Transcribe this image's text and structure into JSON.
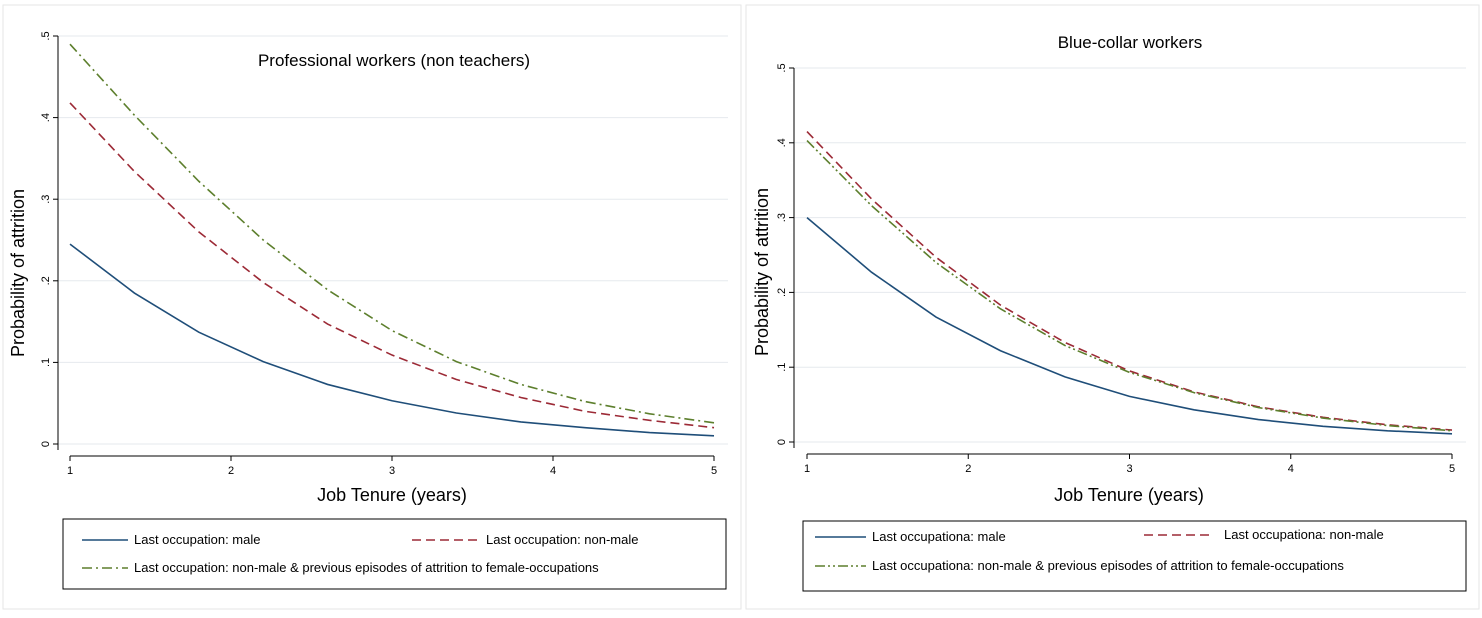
{
  "chart_data": [
    {
      "type": "line",
      "title": "Professional workers (non teachers)",
      "xlabel": "Job Tenure (years)",
      "ylabel": "Probability of attrition",
      "xlim": [
        1,
        5
      ],
      "ylim": [
        0,
        0.5
      ],
      "xticks": [
        1,
        2,
        3,
        4,
        5
      ],
      "xtick_labels": [
        "1",
        "2",
        "3",
        "4",
        "5"
      ],
      "yticks": [
        0,
        0.1,
        0.2,
        0.3,
        0.4,
        0.5
      ],
      "ytick_labels": [
        "0",
        ".1",
        ".2",
        ".3",
        ".4",
        ".5"
      ],
      "grid": true,
      "legend_position": "bottom",
      "x": [
        1,
        1.4,
        1.8,
        2.2,
        2.6,
        3,
        3.4,
        3.8,
        4.2,
        4.6,
        5
      ],
      "series": [
        {
          "name": "Last occupation: male",
          "color": "#1f4e79",
          "dash": "solid",
          "values": [
            0.245,
            0.185,
            0.137,
            0.101,
            0.073,
            0.053,
            0.038,
            0.027,
            0.02,
            0.014,
            0.01
          ]
        },
        {
          "name": "Last occupation: non-male",
          "color": "#9c2a36",
          "dash": "dashed",
          "values": [
            0.418,
            0.334,
            0.26,
            0.198,
            0.147,
            0.109,
            0.079,
            0.057,
            0.04,
            0.029,
            0.02
          ]
        },
        {
          "name": "Last occupation: non-male & previous episodes of attrition to female-occupations",
          "color": "#5d7f2d",
          "dash": "dashdot",
          "values": [
            0.49,
            0.403,
            0.322,
            0.25,
            0.189,
            0.139,
            0.101,
            0.073,
            0.052,
            0.037,
            0.026
          ]
        }
      ]
    },
    {
      "type": "line",
      "title": "Blue-collar workers",
      "xlabel": "Job Tenure (years)",
      "ylabel": "Probability of attrition",
      "xlim": [
        1,
        5
      ],
      "ylim": [
        0,
        0.5
      ],
      "xticks": [
        1,
        2,
        3,
        4,
        5
      ],
      "xtick_labels": [
        "1",
        "2",
        "3",
        "4",
        "5"
      ],
      "yticks": [
        0,
        0.1,
        0.2,
        0.3,
        0.4,
        0.5
      ],
      "ytick_labels": [
        "0",
        ".1",
        ".2",
        ".3",
        ".4",
        ".5"
      ],
      "grid": true,
      "legend_position": "bottom",
      "x": [
        1,
        1.4,
        1.8,
        2.2,
        2.6,
        3,
        3.4,
        3.8,
        4.2,
        4.6,
        5
      ],
      "series": [
        {
          "name": "Last occupationa: male",
          "color": "#1f4e79",
          "dash": "solid",
          "values": [
            0.3,
            0.227,
            0.167,
            0.122,
            0.087,
            0.061,
            0.043,
            0.03,
            0.021,
            0.015,
            0.011
          ]
        },
        {
          "name": "Last occupationa: non-male",
          "color": "#9c2a36",
          "dash": "dashed",
          "values": [
            0.415,
            0.325,
            0.247,
            0.183,
            0.133,
            0.095,
            0.067,
            0.047,
            0.033,
            0.023,
            0.016
          ]
        },
        {
          "name": "Last occupationa: non-male & previous episodes of attrition to female-occupations",
          "color": "#5d7f2d",
          "dash": "dashdotdot",
          "values": [
            0.403,
            0.316,
            0.24,
            0.178,
            0.129,
            0.093,
            0.066,
            0.046,
            0.032,
            0.022,
            0.015
          ]
        }
      ]
    }
  ]
}
